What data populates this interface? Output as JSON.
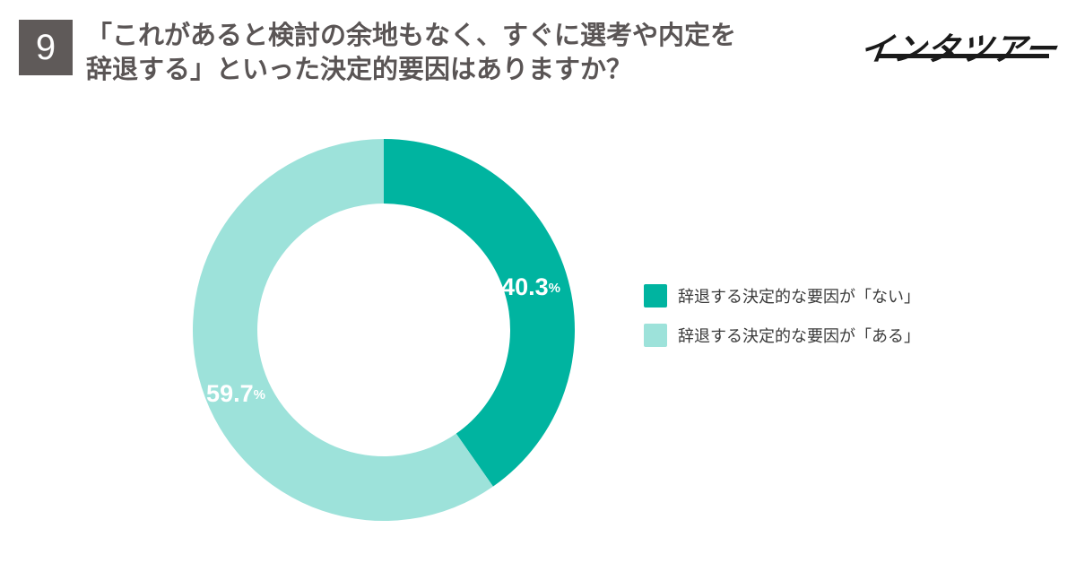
{
  "question": {
    "number": "9",
    "title_line1": "「これがあると検討の余地もなく、すぐに選考や内定を",
    "title_line2": "辞退する」といった決定的要因はありますか？"
  },
  "brand": {
    "logo_text": "インタツアー"
  },
  "chart_data": {
    "type": "pie",
    "donut": true,
    "title": "",
    "series": [
      {
        "name": "辞退する決定的な要因が「ない」",
        "value": 40.3,
        "label": "40.3",
        "unit": "%",
        "color": "#00b4a0"
      },
      {
        "name": "辞退する決定的な要因が「ある」",
        "value": 59.7,
        "label": "59.7",
        "unit": "%",
        "color": "#9de2da"
      }
    ],
    "start_angle": "top",
    "direction": "clockwise",
    "legend_position": "right"
  }
}
